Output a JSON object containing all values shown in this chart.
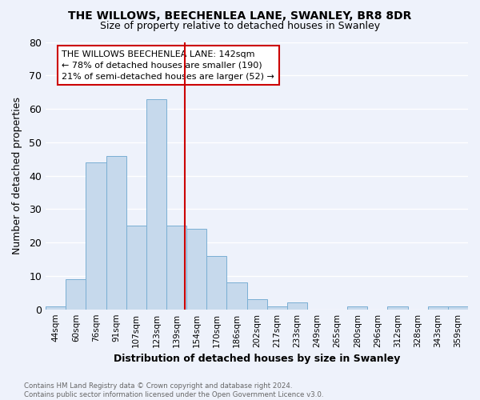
{
  "title1": "THE WILLOWS, BEECHENLEA LANE, SWANLEY, BR8 8DR",
  "title2": "Size of property relative to detached houses in Swanley",
  "xlabel": "Distribution of detached houses by size in Swanley",
  "ylabel": "Number of detached properties",
  "footnote": "Contains HM Land Registry data © Crown copyright and database right 2024.\nContains public sector information licensed under the Open Government Licence v3.0.",
  "bin_labels": [
    "44sqm",
    "60sqm",
    "76sqm",
    "91sqm",
    "107sqm",
    "123sqm",
    "139sqm",
    "154sqm",
    "170sqm",
    "186sqm",
    "202sqm",
    "217sqm",
    "233sqm",
    "249sqm",
    "265sqm",
    "280sqm",
    "296sqm",
    "312sqm",
    "328sqm",
    "343sqm",
    "359sqm"
  ],
  "bar_heights": [
    1,
    9,
    44,
    46,
    25,
    63,
    25,
    24,
    16,
    8,
    3,
    1,
    2,
    0,
    0,
    1,
    0,
    1,
    0,
    1,
    1
  ],
  "bar_color": "#c6d9ec",
  "bar_edge_color": "#7aafd4",
  "vline_x_index": 6,
  "vline_color": "#cc0000",
  "annotation_text": "THE WILLOWS BEECHENLEA LANE: 142sqm\n← 78% of detached houses are smaller (190)\n21% of semi-detached houses are larger (52) →",
  "annotation_box_color": "#cc0000",
  "ylim": [
    0,
    80
  ],
  "yticks": [
    0,
    10,
    20,
    30,
    40,
    50,
    60,
    70,
    80
  ],
  "background_color": "#eef2fb",
  "grid_color": "#ffffff",
  "title_fontsize": 10,
  "subtitle_fontsize": 9
}
